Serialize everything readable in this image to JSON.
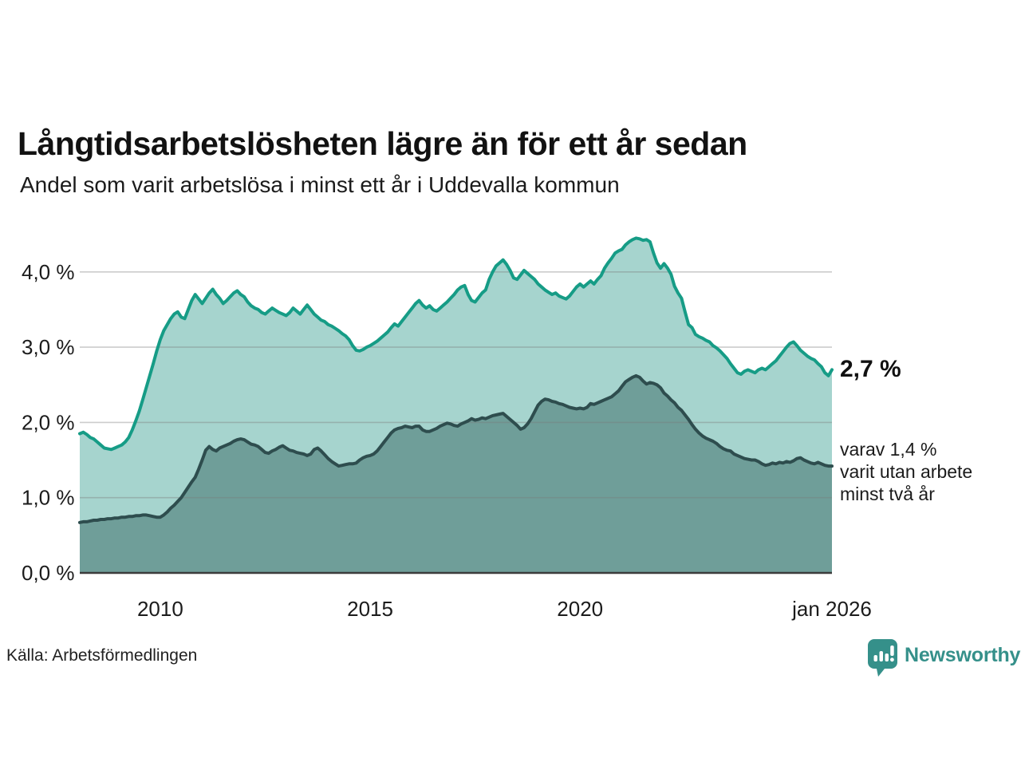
{
  "header": {
    "title": "Långtidsarbetslösheten lägre än för ett år sedan",
    "subtitle": "Andel som varit arbetslösa i minst ett år i Uddevalla kommun"
  },
  "annotations": {
    "latest_label": "2,7 %",
    "secondary_label": "varav 1,4 %\nvarit utan arbete\nminst två år"
  },
  "footer": {
    "source": "Källa: Arbetsförmedlingen",
    "brand": "Newsworthy",
    "brand_color": "#35908a"
  },
  "chart_data": {
    "type": "area",
    "title": "Långtidsarbetslösheten lägre än för ett år sedan",
    "subtitle": "Andel som varit arbetslösa i minst ett år i Uddevalla kommun",
    "x_start": "2008-02",
    "x_end": "2026-01",
    "x_interval": "month",
    "ylim": [
      0,
      4.55
    ],
    "grid": true,
    "yticks": [
      {
        "value": 0,
        "label": "0,0 %"
      },
      {
        "value": 1,
        "label": "1,0 %"
      },
      {
        "value": 2,
        "label": "2,0 %"
      },
      {
        "value": 3,
        "label": "3,0 %"
      },
      {
        "value": 4,
        "label": "4,0 %"
      }
    ],
    "xticks": [
      {
        "month_index": 23,
        "label": "2010"
      },
      {
        "month_index": 83,
        "label": "2015"
      },
      {
        "month_index": 143,
        "label": "2020"
      },
      {
        "month_index": 215,
        "label": "jan 2026"
      }
    ],
    "series": [
      {
        "name": "Arbetslösa minst ett år",
        "latest_value": 2.7,
        "latest_label": "2,7 %",
        "line_color": "#169c86",
        "fill_color": "#a6d4ce",
        "values": [
          1.85,
          1.87,
          1.84,
          1.8,
          1.78,
          1.74,
          1.7,
          1.66,
          1.65,
          1.64,
          1.66,
          1.68,
          1.7,
          1.74,
          1.8,
          1.9,
          2.02,
          2.15,
          2.3,
          2.46,
          2.62,
          2.78,
          2.95,
          3.1,
          3.22,
          3.3,
          3.38,
          3.44,
          3.47,
          3.4,
          3.38,
          3.5,
          3.62,
          3.7,
          3.64,
          3.58,
          3.65,
          3.72,
          3.77,
          3.7,
          3.65,
          3.58,
          3.62,
          3.67,
          3.72,
          3.75,
          3.7,
          3.67,
          3.6,
          3.55,
          3.52,
          3.5,
          3.46,
          3.44,
          3.48,
          3.52,
          3.49,
          3.46,
          3.44,
          3.42,
          3.46,
          3.52,
          3.48,
          3.44,
          3.5,
          3.56,
          3.5,
          3.44,
          3.4,
          3.36,
          3.34,
          3.3,
          3.28,
          3.25,
          3.22,
          3.18,
          3.15,
          3.1,
          3.02,
          2.96,
          2.95,
          2.97,
          3.0,
          3.02,
          3.05,
          3.08,
          3.12,
          3.16,
          3.2,
          3.26,
          3.31,
          3.28,
          3.34,
          3.4,
          3.46,
          3.52,
          3.58,
          3.62,
          3.56,
          3.52,
          3.55,
          3.5,
          3.48,
          3.52,
          3.56,
          3.6,
          3.65,
          3.7,
          3.76,
          3.8,
          3.82,
          3.7,
          3.62,
          3.6,
          3.66,
          3.72,
          3.76,
          3.9,
          4.0,
          4.08,
          4.12,
          4.16,
          4.1,
          4.02,
          3.92,
          3.9,
          3.96,
          4.02,
          3.98,
          3.94,
          3.9,
          3.84,
          3.8,
          3.76,
          3.73,
          3.7,
          3.72,
          3.68,
          3.66,
          3.64,
          3.68,
          3.74,
          3.8,
          3.84,
          3.8,
          3.84,
          3.88,
          3.84,
          3.9,
          3.95,
          4.05,
          4.12,
          4.18,
          4.25,
          4.28,
          4.3,
          4.36,
          4.4,
          4.43,
          4.45,
          4.44,
          4.42,
          4.43,
          4.4,
          4.25,
          4.12,
          4.05,
          4.11,
          4.05,
          3.97,
          3.81,
          3.72,
          3.65,
          3.47,
          3.3,
          3.26,
          3.17,
          3.14,
          3.12,
          3.09,
          3.07,
          3.02,
          2.99,
          2.95,
          2.9,
          2.85,
          2.78,
          2.72,
          2.66,
          2.64,
          2.68,
          2.7,
          2.68,
          2.66,
          2.7,
          2.72,
          2.7,
          2.74,
          2.78,
          2.82,
          2.88,
          2.94,
          3.0,
          3.05,
          3.07,
          3.02,
          2.96,
          2.92,
          2.88,
          2.85,
          2.83,
          2.78,
          2.74,
          2.66,
          2.62,
          2.7
        ]
      },
      {
        "name": "varav utan arbete minst två år",
        "latest_value": 1.4,
        "latest_label": "varav 1,4 % varit utan arbete minst två år",
        "line_color": "#2e4d4e",
        "fill_color": "#6f9e99",
        "values": [
          0.67,
          0.68,
          0.68,
          0.69,
          0.7,
          0.7,
          0.71,
          0.71,
          0.72,
          0.72,
          0.73,
          0.73,
          0.74,
          0.74,
          0.75,
          0.75,
          0.76,
          0.76,
          0.77,
          0.77,
          0.76,
          0.75,
          0.74,
          0.74,
          0.77,
          0.81,
          0.86,
          0.9,
          0.95,
          1.0,
          1.07,
          1.14,
          1.21,
          1.27,
          1.38,
          1.5,
          1.63,
          1.68,
          1.64,
          1.62,
          1.66,
          1.68,
          1.7,
          1.72,
          1.75,
          1.77,
          1.78,
          1.77,
          1.74,
          1.71,
          1.7,
          1.68,
          1.64,
          1.6,
          1.59,
          1.62,
          1.64,
          1.67,
          1.69,
          1.66,
          1.63,
          1.62,
          1.6,
          1.59,
          1.58,
          1.56,
          1.58,
          1.64,
          1.66,
          1.62,
          1.57,
          1.52,
          1.48,
          1.45,
          1.42,
          1.43,
          1.44,
          1.45,
          1.45,
          1.46,
          1.5,
          1.53,
          1.55,
          1.56,
          1.58,
          1.62,
          1.68,
          1.74,
          1.8,
          1.86,
          1.9,
          1.92,
          1.93,
          1.95,
          1.94,
          1.93,
          1.95,
          1.95,
          1.9,
          1.88,
          1.88,
          1.9,
          1.92,
          1.95,
          1.97,
          1.99,
          1.98,
          1.96,
          1.95,
          1.98,
          2.0,
          2.02,
          2.05,
          2.03,
          2.04,
          2.06,
          2.05,
          2.07,
          2.09,
          2.1,
          2.11,
          2.12,
          2.08,
          2.04,
          2.0,
          1.96,
          1.91,
          1.93,
          1.98,
          2.05,
          2.14,
          2.23,
          2.28,
          2.31,
          2.3,
          2.28,
          2.27,
          2.25,
          2.24,
          2.22,
          2.2,
          2.19,
          2.18,
          2.19,
          2.18,
          2.2,
          2.25,
          2.24,
          2.26,
          2.28,
          2.3,
          2.32,
          2.34,
          2.38,
          2.42,
          2.48,
          2.54,
          2.57,
          2.6,
          2.62,
          2.6,
          2.55,
          2.51,
          2.53,
          2.52,
          2.5,
          2.46,
          2.39,
          2.35,
          2.3,
          2.26,
          2.2,
          2.16,
          2.1,
          2.04,
          1.97,
          1.91,
          1.86,
          1.82,
          1.79,
          1.77,
          1.75,
          1.72,
          1.68,
          1.65,
          1.63,
          1.62,
          1.58,
          1.56,
          1.54,
          1.52,
          1.51,
          1.5,
          1.5,
          1.48,
          1.45,
          1.43,
          1.44,
          1.46,
          1.45,
          1.47,
          1.46,
          1.48,
          1.47,
          1.49,
          1.52,
          1.53,
          1.5,
          1.48,
          1.46,
          1.45,
          1.47,
          1.45,
          1.43,
          1.42,
          1.42
        ]
      }
    ],
    "source": "Källa: Arbetsförmedlingen"
  }
}
